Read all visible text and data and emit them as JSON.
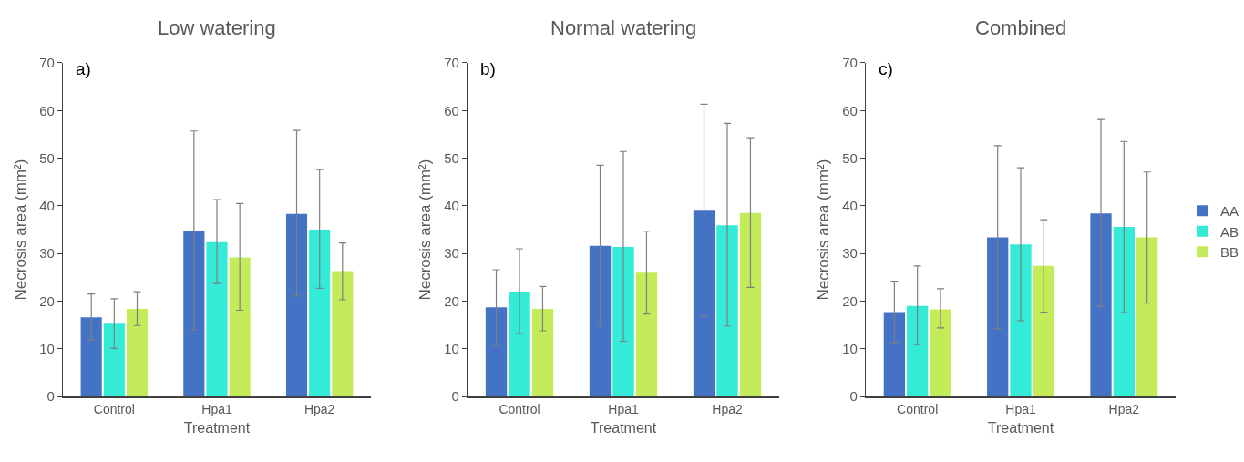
{
  "chart_data": [
    {
      "type": "bar",
      "title": "Low watering",
      "xlabel": "Treatment",
      "ylabel": "Necrosis area (mm²)",
      "annotations": [
        "a)"
      ],
      "categories": [
        "Control",
        "Hpa1",
        "Hpa2"
      ],
      "ylim": [
        0,
        70
      ],
      "yticks": [
        0,
        10,
        20,
        30,
        40,
        50,
        60,
        70
      ],
      "grid": false,
      "series": [
        {
          "color": "#4472c4",
          "values": [
            16.6,
            34.7,
            38.3
          ],
          "errors": [
            [
              11.9,
              21.5
            ],
            [
              14.0,
              55.7
            ],
            [
              21.1,
              55.8
            ]
          ]
        },
        {
          "color": "#33ebd6",
          "values": [
            15.3,
            32.4,
            35.0
          ],
          "errors": [
            [
              10.1,
              20.5
            ],
            [
              23.7,
              41.3
            ],
            [
              22.7,
              47.6
            ]
          ]
        },
        {
          "color": "#c4ec5a",
          "values": [
            18.4,
            29.2,
            26.3
          ],
          "errors": [
            [
              14.9,
              22.0
            ],
            [
              18.1,
              40.5
            ],
            [
              20.3,
              32.2
            ]
          ]
        }
      ]
    },
    {
      "type": "bar",
      "title": "Normal watering",
      "xlabel": "Treatment",
      "ylabel": "Necrosis area (mm²)",
      "annotations": [
        "b)"
      ],
      "categories": [
        "Control",
        "Hpa1",
        "Hpa2"
      ],
      "ylim": [
        0,
        70
      ],
      "yticks": [
        0,
        10,
        20,
        30,
        40,
        50,
        60,
        70
      ],
      "grid": false,
      "series": [
        {
          "color": "#4472c4",
          "values": [
            18.7,
            31.6,
            39.0
          ],
          "errors": [
            [
              10.9,
              26.6
            ],
            [
              14.8,
              48.5
            ],
            [
              16.8,
              61.3
            ]
          ]
        },
        {
          "color": "#33ebd6",
          "values": [
            22.0,
            31.4,
            35.9
          ],
          "errors": [
            [
              13.2,
              31.0
            ],
            [
              11.6,
              51.4
            ],
            [
              14.8,
              57.3
            ]
          ]
        },
        {
          "color": "#c4ec5a",
          "values": [
            18.4,
            26.0,
            38.5
          ],
          "errors": [
            [
              13.8,
              23.1
            ],
            [
              17.3,
              34.7
            ],
            [
              22.9,
              54.3
            ]
          ]
        }
      ]
    },
    {
      "type": "bar",
      "title": "Combined",
      "xlabel": "Treatment",
      "ylabel": "Necrosis area (mm²)",
      "annotations": [
        "c)"
      ],
      "categories": [
        "Control",
        "Hpa1",
        "Hpa2"
      ],
      "ylim": [
        0,
        70
      ],
      "yticks": [
        0,
        10,
        20,
        30,
        40,
        50,
        60,
        70
      ],
      "grid": false,
      "legend": "right",
      "series": [
        {
          "name": "AA",
          "color": "#4472c4",
          "values": [
            17.7,
            33.4,
            38.4
          ],
          "errors": [
            [
              11.3,
              24.2
            ],
            [
              14.2,
              52.6
            ],
            [
              18.9,
              58.1
            ]
          ]
        },
        {
          "name": "AB",
          "color": "#33ebd6",
          "values": [
            19.0,
            31.9,
            35.6
          ],
          "errors": [
            [
              10.9,
              27.4
            ],
            [
              15.9,
              48.0
            ],
            [
              17.6,
              53.5
            ]
          ]
        },
        {
          "name": "BB",
          "color": "#c4ec5a",
          "values": [
            18.3,
            27.4,
            33.4
          ],
          "errors": [
            [
              14.4,
              22.6
            ],
            [
              17.7,
              37.1
            ],
            [
              19.6,
              47.1
            ]
          ]
        }
      ]
    }
  ]
}
